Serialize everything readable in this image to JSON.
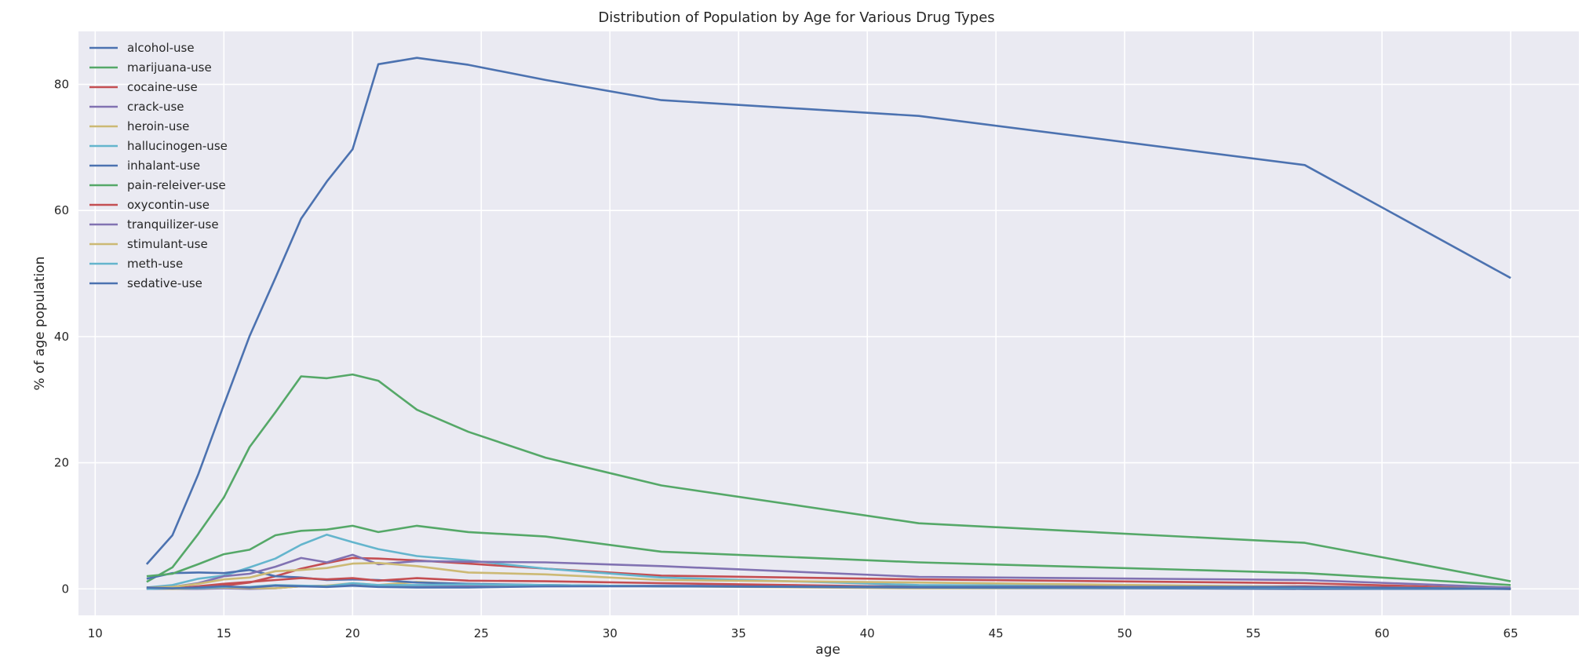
{
  "chart_data": {
    "type": "line",
    "title": "Distribution of Population by Age for Various Drug Types",
    "xlabel": "age",
    "ylabel": "% of age population",
    "xlim": [
      9.35,
      67.65
    ],
    "ylim": [
      -4.2,
      88.4
    ],
    "xticks": [
      10,
      15,
      20,
      25,
      30,
      35,
      40,
      45,
      50,
      55,
      60,
      65
    ],
    "yticks": [
      0,
      20,
      40,
      60,
      80
    ],
    "grid": true,
    "legend_position": "top-left",
    "x": [
      12,
      13,
      14,
      15,
      16,
      17,
      18,
      19,
      20,
      21,
      22.5,
      24.5,
      27.5,
      32,
      42,
      57,
      65
    ],
    "series": [
      {
        "name": "alcohol-use",
        "color": "#4c72b0",
        "values": [
          3.9,
          8.5,
          18.1,
          29.2,
          40.1,
          49.3,
          58.7,
          64.6,
          69.7,
          83.2,
          84.2,
          83.1,
          80.7,
          77.5,
          75.0,
          67.2,
          49.3
        ]
      },
      {
        "name": "marijuana-use",
        "color": "#55a868",
        "values": [
          1.1,
          3.4,
          8.7,
          14.5,
          22.5,
          28.0,
          33.7,
          33.4,
          34.0,
          33.0,
          28.4,
          24.9,
          20.8,
          16.4,
          10.4,
          7.3,
          1.2
        ]
      },
      {
        "name": "cocaine-use",
        "color": "#c44e52",
        "values": [
          0.1,
          0.1,
          0.1,
          0.5,
          1.0,
          2.0,
          3.2,
          4.1,
          4.9,
          4.8,
          4.5,
          4.0,
          3.2,
          2.1,
          1.5,
          0.9,
          0.0
        ]
      },
      {
        "name": "crack-use",
        "color": "#8172b2",
        "values": [
          0.0,
          0.0,
          0.0,
          0.1,
          0.0,
          0.1,
          0.4,
          0.5,
          0.6,
          0.5,
          0.5,
          0.5,
          0.4,
          0.5,
          0.4,
          0.2,
          0.0
        ]
      },
      {
        "name": "heroin-use",
        "color": "#ccb974",
        "values": [
          0.1,
          0.0,
          0.1,
          0.2,
          0.1,
          0.1,
          0.4,
          0.5,
          0.9,
          0.6,
          1.1,
          0.7,
          0.6,
          0.4,
          0.1,
          0.1,
          0.1
        ]
      },
      {
        "name": "hallucinogen-use",
        "color": "#64b5cd",
        "values": [
          0.2,
          0.6,
          1.6,
          2.1,
          3.4,
          4.8,
          7.0,
          8.6,
          7.4,
          6.3,
          5.2,
          4.5,
          3.2,
          1.8,
          0.6,
          0.3,
          0.1
        ]
      },
      {
        "name": "inhalant-use",
        "color": "#4c72b0",
        "values": [
          1.6,
          2.5,
          2.6,
          2.5,
          3.0,
          2.0,
          1.8,
          1.4,
          1.5,
          1.4,
          1.0,
          0.8,
          0.6,
          0.4,
          0.2,
          0.0,
          0.0
        ]
      },
      {
        "name": "pain-releiver-use",
        "color": "#55a868",
        "values": [
          2.0,
          2.4,
          3.9,
          5.5,
          6.2,
          8.5,
          9.2,
          9.4,
          10.0,
          9.0,
          10.0,
          9.0,
          8.3,
          5.9,
          4.2,
          2.5,
          0.6
        ]
      },
      {
        "name": "oxycontin-use",
        "color": "#c44e52",
        "values": [
          0.1,
          0.1,
          0.4,
          0.8,
          1.1,
          1.4,
          1.7,
          1.5,
          1.7,
          1.3,
          1.7,
          1.3,
          1.2,
          0.9,
          0.3,
          0.4,
          0.0
        ]
      },
      {
        "name": "tranquilizer-use",
        "color": "#8172b2",
        "values": [
          0.2,
          0.3,
          0.9,
          2.0,
          2.4,
          3.5,
          4.9,
          4.2,
          5.4,
          3.9,
          4.4,
          4.3,
          4.2,
          3.6,
          1.9,
          1.4,
          0.2
        ]
      },
      {
        "name": "stimulant-use",
        "color": "#ccb974",
        "values": [
          0.2,
          0.3,
          0.8,
          1.5,
          1.8,
          2.8,
          3.0,
          3.3,
          4.0,
          4.1,
          3.6,
          2.6,
          2.3,
          1.4,
          1.0,
          0.3,
          0.0
        ]
      },
      {
        "name": "meth-use",
        "color": "#64b5cd",
        "values": [
          0.0,
          0.1,
          0.1,
          0.3,
          0.3,
          0.6,
          0.5,
          0.4,
          0.9,
          0.6,
          0.6,
          0.7,
          0.6,
          0.4,
          0.3,
          0.2,
          0.0
        ]
      },
      {
        "name": "sedative-use",
        "color": "#4c72b0",
        "values": [
          0.2,
          0.1,
          0.2,
          0.4,
          0.2,
          0.5,
          0.4,
          0.3,
          0.5,
          0.3,
          0.2,
          0.2,
          0.4,
          0.4,
          0.3,
          0.3,
          0.0
        ]
      }
    ]
  },
  "colors": {
    "plot_background": "#eaeaf2",
    "grid": "#ffffff",
    "text": "#262626"
  }
}
